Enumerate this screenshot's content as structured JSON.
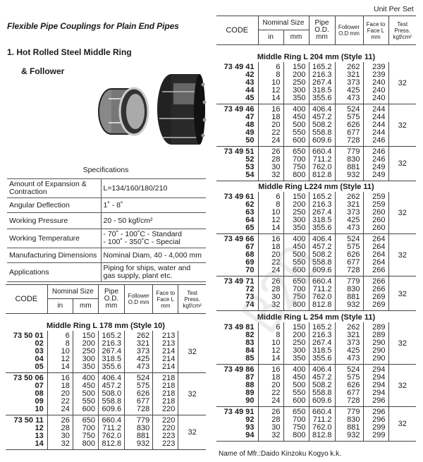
{
  "header": {
    "title": "Flexible Pipe Couplings for Plain End Pipes",
    "heading_line1": "1. Hot Rolled Steel Middle Ring",
    "heading_line2": "& Follower",
    "unit": "Unit Per Set"
  },
  "watermark": "B2B",
  "specifications": {
    "caption": "Specifications",
    "rows": [
      {
        "label": "Amount of Expansion & Contraction",
        "value": "L=134/160/180/210"
      },
      {
        "label": "Angular Deflection",
        "value": "1˚ - 8˚"
      },
      {
        "label": "Working Pressure",
        "value": "20 - 50 kgf/cm²"
      },
      {
        "label": "Working Temperature",
        "value": "-  70˚  - 100˚C - Standard\n- 100˚  - 350˚C - Special"
      },
      {
        "label": "Manufacturing Dimensions",
        "value": "Nominal Diam, 40 - 4,000 mm"
      },
      {
        "label": "Applications",
        "value": "Piping for ships, water and gas supply, plant etc."
      }
    ]
  },
  "columns": {
    "code": "CODE",
    "nominal": "Nominal Size",
    "in": "in",
    "mm": "mm",
    "pipe": "Pipe O.D. mm",
    "follower": "Follower O.D mm",
    "face": "Face to Face L mm",
    "test": "Test Press. kgf/cm²"
  },
  "tables": [
    {
      "sections": [
        {
          "title": "Middle Ring L 178 mm (Style 10)",
          "groups": [
            {
              "test": "32",
              "rows": [
                [
                  "73 50 01",
                  "6",
                  "150",
                  "165.2",
                  "262",
                  "213"
                ],
                [
                  "02",
                  "8",
                  "200",
                  "216.3",
                  "321",
                  "213"
                ],
                [
                  "03",
                  "10",
                  "250",
                  "267.4",
                  "373",
                  "214"
                ],
                [
                  "04",
                  "12",
                  "300",
                  "318.5",
                  "425",
                  "214"
                ],
                [
                  "05",
                  "14",
                  "350",
                  "355.6",
                  "473",
                  "214"
                ]
              ]
            },
            {
              "test": "32",
              "rows": [
                [
                  "73 50 06",
                  "16",
                  "400",
                  "406.4",
                  "524",
                  "218"
                ],
                [
                  "07",
                  "18",
                  "450",
                  "457.2",
                  "575",
                  "218"
                ],
                [
                  "08",
                  "20",
                  "500",
                  "508.0",
                  "626",
                  "218"
                ],
                [
                  "09",
                  "22",
                  "550",
                  "558.8",
                  "677",
                  "218"
                ],
                [
                  "10",
                  "24",
                  "600",
                  "609.6",
                  "728",
                  "220"
                ]
              ]
            },
            {
              "test": "32",
              "rows": [
                [
                  "73 50 11",
                  "26",
                  "650",
                  "660.4",
                  "779",
                  "220"
                ],
                [
                  "12",
                  "28",
                  "700",
                  "711.2",
                  "830",
                  "220"
                ],
                [
                  "13",
                  "30",
                  "750",
                  "762.0",
                  "881",
                  "223"
                ],
                [
                  "14",
                  "32",
                  "800",
                  "812.8",
                  "932",
                  "223"
                ]
              ]
            }
          ]
        }
      ]
    },
    {
      "sections": [
        {
          "title": "Middle Ring L 204 mm (Style 11)",
          "groups": [
            {
              "test": "32",
              "rows": [
                [
                  "73 49 41",
                  "6",
                  "150",
                  "165.2",
                  "262",
                  "239"
                ],
                [
                  "42",
                  "8",
                  "200",
                  "216.3",
                  "321",
                  "239"
                ],
                [
                  "43",
                  "10",
                  "250",
                  "267.4",
                  "373",
                  "240"
                ],
                [
                  "44",
                  "12",
                  "300",
                  "318.5",
                  "425",
                  "240"
                ],
                [
                  "45",
                  "14",
                  "350",
                  "355.6",
                  "473",
                  "240"
                ]
              ]
            },
            {
              "test": "32",
              "rows": [
                [
                  "73 49 46",
                  "16",
                  "400",
                  "406.4",
                  "524",
                  "244"
                ],
                [
                  "47",
                  "18",
                  "450",
                  "457.2",
                  "575",
                  "244"
                ],
                [
                  "48",
                  "20",
                  "500",
                  "508.2",
                  "626",
                  "244"
                ],
                [
                  "49",
                  "22",
                  "550",
                  "558.8",
                  "677",
                  "244"
                ],
                [
                  "50",
                  "24",
                  "600",
                  "609.6",
                  "728",
                  "246"
                ]
              ]
            },
            {
              "test": "32",
              "rows": [
                [
                  "73 49 51",
                  "26",
                  "650",
                  "660.4",
                  "779",
                  "246"
                ],
                [
                  "52",
                  "28",
                  "700",
                  "711.2",
                  "830",
                  "246"
                ],
                [
                  "53",
                  "30",
                  "750",
                  "762.0",
                  "881",
                  "249"
                ],
                [
                  "54",
                  "32",
                  "800",
                  "812.8",
                  "932",
                  "249"
                ]
              ]
            }
          ]
        },
        {
          "title": "Middle Ring L224 mm (Style 11)",
          "groups": [
            {
              "test": "32",
              "rows": [
                [
                  "73 49 61",
                  "6",
                  "150",
                  "165.2",
                  "262",
                  "259"
                ],
                [
                  "62",
                  "8",
                  "200",
                  "216.3",
                  "321",
                  "259"
                ],
                [
                  "63",
                  "10",
                  "250",
                  "267.4",
                  "373",
                  "260"
                ],
                [
                  "64",
                  "12",
                  "300",
                  "318.5",
                  "425",
                  "260"
                ],
                [
                  "65",
                  "14",
                  "350",
                  "355.6",
                  "473",
                  "260"
                ]
              ]
            },
            {
              "test": "32",
              "rows": [
                [
                  "73 49 66",
                  "16",
                  "400",
                  "406.4",
                  "524",
                  "264"
                ],
                [
                  "67",
                  "18",
                  "450",
                  "457.2",
                  "575",
                  "264"
                ],
                [
                  "68",
                  "20",
                  "500",
                  "508.2",
                  "626",
                  "264"
                ],
                [
                  "69",
                  "22",
                  "550",
                  "558.8",
                  "677",
                  "264"
                ],
                [
                  "70",
                  "24",
                  "600",
                  "609.6",
                  "728",
                  "266"
                ]
              ]
            },
            {
              "test": "32",
              "rows": [
                [
                  "73 49 71",
                  "26",
                  "650",
                  "660.4",
                  "779",
                  "266"
                ],
                [
                  "72",
                  "28",
                  "700",
                  "711.2",
                  "830",
                  "266"
                ],
                [
                  "73",
                  "30",
                  "750",
                  "762.0",
                  "881",
                  "269"
                ],
                [
                  "74",
                  "32",
                  "800",
                  "812.8",
                  "932",
                  "269"
                ]
              ]
            }
          ]
        },
        {
          "title": "Middle Ring L 254 mm (Style 11)",
          "groups": [
            {
              "test": "32",
              "rows": [
                [
                  "73 49 81",
                  "6",
                  "150",
                  "165.2",
                  "262",
                  "289"
                ],
                [
                  "82",
                  "8",
                  "200",
                  "216.3",
                  "321",
                  "289"
                ],
                [
                  "83",
                  "10",
                  "250",
                  "267.4",
                  "373",
                  "290"
                ],
                [
                  "84",
                  "12",
                  "300",
                  "318.5",
                  "425",
                  "290"
                ],
                [
                  "85",
                  "14",
                  "350",
                  "355.6",
                  "473",
                  "290"
                ]
              ]
            },
            {
              "test": "32",
              "rows": [
                [
                  "73 49 86",
                  "16",
                  "400",
                  "406.4",
                  "524",
                  "294"
                ],
                [
                  "87",
                  "18",
                  "450",
                  "457.2",
                  "575",
                  "294"
                ],
                [
                  "88",
                  "20",
                  "500",
                  "508.2",
                  "626",
                  "294"
                ],
                [
                  "89",
                  "22",
                  "550",
                  "558.8",
                  "677",
                  "294"
                ],
                [
                  "90",
                  "24",
                  "600",
                  "609.6",
                  "728",
                  "296"
                ]
              ]
            },
            {
              "test": "32",
              "rows": [
                [
                  "73 49 91",
                  "26",
                  "650",
                  "660.4",
                  "779",
                  "296"
                ],
                [
                  "92",
                  "28",
                  "700",
                  "711.2",
                  "830",
                  "296"
                ],
                [
                  "93",
                  "30",
                  "750",
                  "762.0",
                  "881",
                  "299"
                ],
                [
                  "94",
                  "32",
                  "800",
                  "812.8",
                  "932",
                  "299"
                ]
              ]
            }
          ]
        }
      ]
    }
  ],
  "footer": {
    "manufacturer": "Name of Mfr.:Daido Kinzoku Kogyo k.k."
  }
}
